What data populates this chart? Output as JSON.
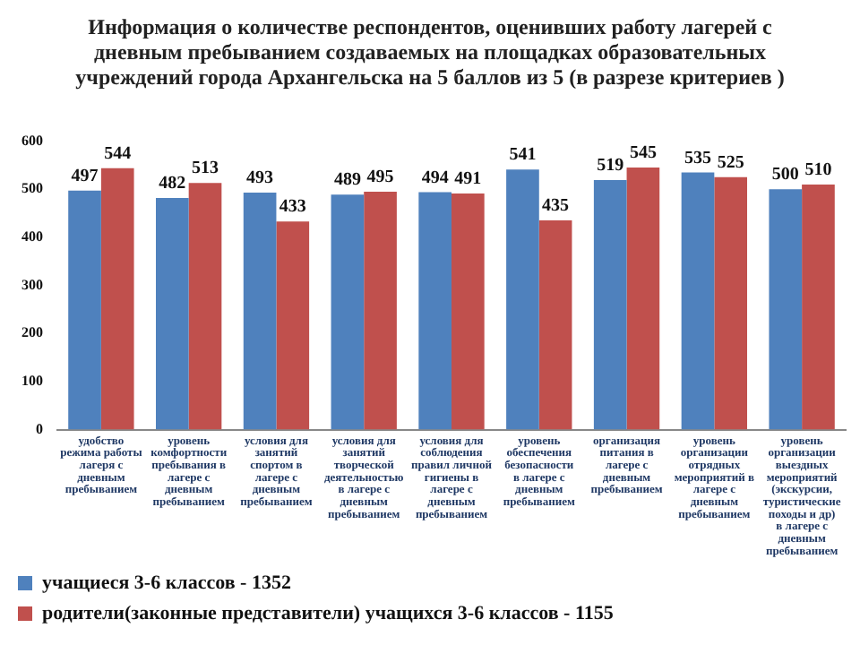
{
  "chart_data": {
    "type": "bar",
    "title": "Информация о количестве респондентов, оценивших работу лагерей с дневным пребыванием создаваемых на площадках образовательных учреждений города Архангельска на 5 баллов из 5 (в разрезе критериев )",
    "categories": [
      "удобство режима работы лагеря с дневным пребыванием",
      "уровень комфортности пребывания в лагере с дневным пребыванием",
      "условия для занятий спортом в лагере с дневным пребыванием",
      "условия для занятий творческой деятельностью в лагере с дневным пребыванием",
      "условия для соблюдения правил личной гигиены в лагере с дневным пребыванием",
      "уровень обеспечения безопасности в лагере с дневным пребыванием",
      "организация питания в лагере с дневным пребыванием",
      "уровень организации отрядных мероприятий в лагере с дневным пребыванием",
      "уровень организации выездных мероприятий (экскурсии, туристические походы и др) в лагере с дневным пребыванием"
    ],
    "series": [
      {
        "name": "учащиеся 3-6 классов - 1352",
        "color": "#4f81bd",
        "values": [
          497,
          482,
          493,
          489,
          494,
          541,
          519,
          535,
          500
        ]
      },
      {
        "name": "родители(законные представители) учащихся 3-6 классов - 1155",
        "color": "#c0504d",
        "values": [
          544,
          513,
          433,
          495,
          491,
          435,
          545,
          525,
          510
        ]
      }
    ],
    "ylim": [
      0,
      600
    ],
    "yticks": [
      0,
      100,
      200,
      300,
      400,
      500,
      600
    ],
    "grid": false,
    "legend": "bottom",
    "data_labels": true
  }
}
